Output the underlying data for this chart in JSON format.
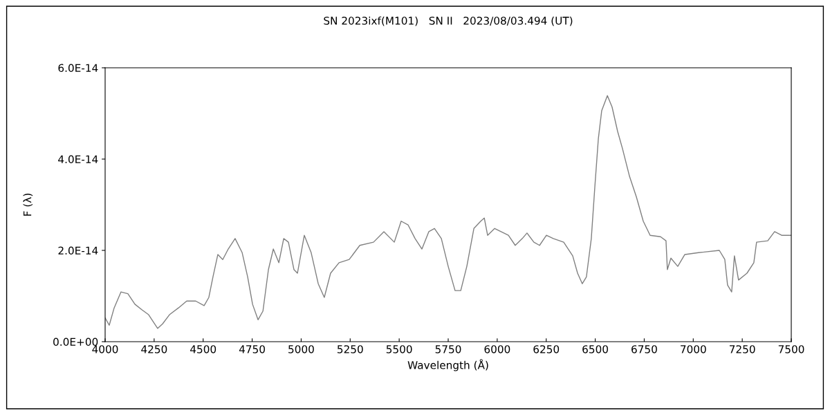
{
  "chart_data": {
    "type": "line",
    "title": "SN 2023ixf(M101)   SN II   2023/08/03.494 (UT)",
    "xlabel": "Wavelength (Å)",
    "ylabel": "F (λ)",
    "xlim": [
      4000,
      7500
    ],
    "xticks": [
      4000,
      4250,
      4500,
      4750,
      5000,
      5250,
      5500,
      5750,
      6000,
      6250,
      6500,
      6750,
      7000,
      7250,
      7500
    ],
    "ylim": [
      0,
      6e-14
    ],
    "yticks": [
      {
        "value": 0,
        "label": "0.0E+00"
      },
      {
        "value": 2e-14,
        "label": "2.0E-14"
      },
      {
        "value": 4e-14,
        "label": "4.0E-14"
      },
      {
        "value": 6e-14,
        "label": "6.0E-14"
      }
    ],
    "grid": false,
    "legend": false,
    "marker": "none",
    "line_style": "solid",
    "series": [
      {
        "color": "#808080",
        "x": [
          4000,
          4021,
          4046,
          4081,
          4116,
          4152,
          4187,
          4222,
          4268,
          4293,
          4328,
          4374,
          4416,
          4462,
          4505,
          4529,
          4550,
          4575,
          4600,
          4628,
          4663,
          4699,
          4727,
          4752,
          4780,
          4805,
          4833,
          4858,
          4886,
          4911,
          4935,
          4963,
          4981,
          5016,
          5051,
          5087,
          5118,
          5150,
          5193,
          5245,
          5299,
          5369,
          5422,
          5475,
          5510,
          5545,
          5581,
          5616,
          5651,
          5680,
          5715,
          5750,
          5785,
          5814,
          5845,
          5881,
          5916,
          5934,
          5951,
          5987,
          6057,
          6092,
          6128,
          6152,
          6187,
          6216,
          6251,
          6286,
          6339,
          6385,
          6410,
          6434,
          6455,
          6480,
          6498,
          6516,
          6533,
          6562,
          6586,
          6614,
          6639,
          6675,
          6710,
          6745,
          6780,
          6833,
          6861,
          6868,
          6886,
          6921,
          6957,
          7027,
          7133,
          7161,
          7175,
          7196,
          7210,
          7231,
          7274,
          7309,
          7323,
          7380,
          7415,
          7451,
          7500
        ],
        "values": [
          5.2e-15,
          3.6e-15,
          7.4e-15,
          1.09e-14,
          1.05e-14,
          8.2e-15,
          7e-15,
          5.9e-15,
          2.9e-15,
          3.9e-15,
          5.9e-15,
          7.4e-15,
          8.9e-15,
          8.9e-15,
          7.9e-15,
          9.7e-15,
          1.42e-14,
          1.91e-14,
          1.8e-14,
          2.03e-14,
          2.26e-14,
          1.95e-14,
          1.42e-14,
          8.2e-15,
          4.8e-15,
          6.7e-15,
          1.58e-14,
          2.03e-14,
          1.73e-14,
          2.26e-14,
          2.18e-14,
          1.58e-14,
          1.5e-14,
          2.33e-14,
          1.95e-14,
          1.27e-14,
          9.7e-15,
          1.5e-14,
          1.73e-14,
          1.8e-14,
          2.11e-14,
          2.18e-14,
          2.41e-14,
          2.18e-14,
          2.64e-14,
          2.56e-14,
          2.26e-14,
          2.03e-14,
          2.41e-14,
          2.48e-14,
          2.26e-14,
          1.65e-14,
          1.12e-14,
          1.12e-14,
          1.65e-14,
          2.48e-14,
          2.64e-14,
          2.71e-14,
          2.33e-14,
          2.48e-14,
          2.33e-14,
          2.11e-14,
          2.26e-14,
          2.38e-14,
          2.18e-14,
          2.11e-14,
          2.33e-14,
          2.26e-14,
          2.18e-14,
          1.88e-14,
          1.5e-14,
          1.27e-14,
          1.42e-14,
          2.26e-14,
          3.39e-14,
          4.45e-14,
          5.06e-14,
          5.39e-14,
          5.14e-14,
          4.61e-14,
          4.23e-14,
          3.62e-14,
          3.17e-14,
          2.64e-14,
          2.33e-14,
          2.3e-14,
          2.21e-14,
          1.58e-14,
          1.83e-14,
          1.65e-14,
          1.91e-14,
          1.95e-14,
          2e-14,
          1.8e-14,
          1.24e-14,
          1.09e-14,
          1.88e-14,
          1.35e-14,
          1.5e-14,
          1.73e-14,
          2.18e-14,
          2.21e-14,
          2.41e-14,
          2.33e-14,
          2.33e-14
        ]
      }
    ]
  }
}
